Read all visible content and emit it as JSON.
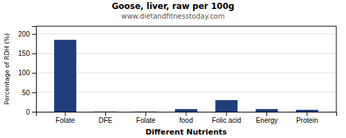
{
  "chart_data": {
    "type": "bar",
    "title": "Goose, liver, raw per 100g",
    "subtitle": "www.dietandfitnesstoday.com",
    "xlabel": "Different Nutrients",
    "ylabel": "Percentage of RDH (%)",
    "categories": [
      "Folate",
      "DFE",
      "Folate",
      "food",
      "Folic acid",
      "Energy",
      "Protein"
    ],
    "values": [
      185,
      0.5,
      0.5,
      7,
      30,
      7,
      5
    ],
    "color": "#1f3d7a",
    "ylim": [
      0,
      220
    ],
    "yticks": [
      0,
      50,
      100,
      150,
      200
    ],
    "grid": true
  }
}
